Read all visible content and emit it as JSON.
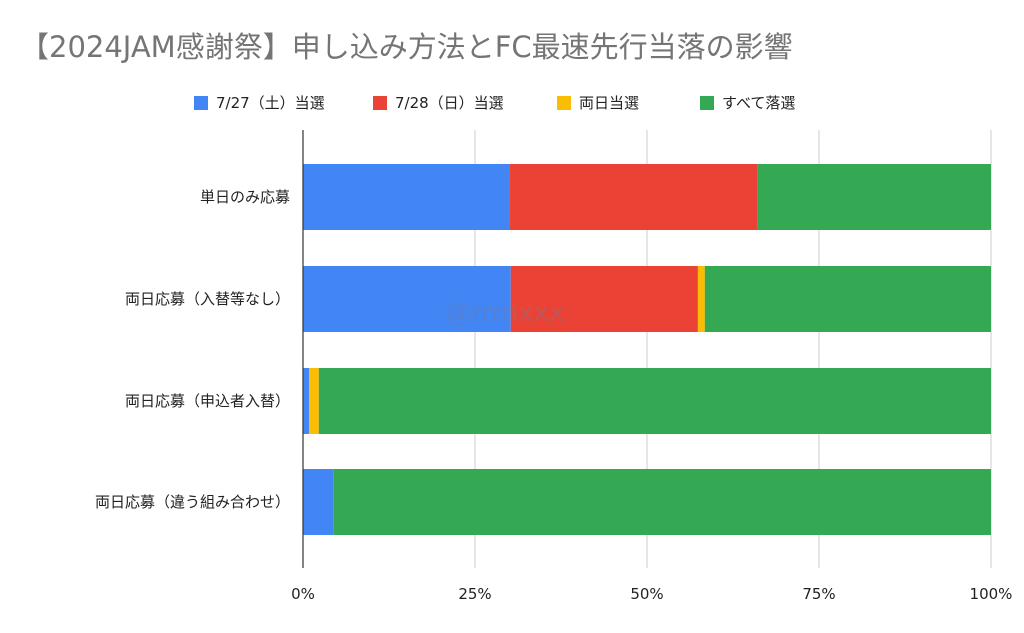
{
  "chart_data": {
    "type": "bar",
    "orientation": "horizontal",
    "stacked": "percent",
    "title": "【2024JAM感謝祭】申し込み方法とFC最速先行当落の影響",
    "categories": [
      "単日のみ応募",
      "両日応募（入替等なし）",
      "両日応募（申込者入替）",
      "両日応募（違う組み合わせ）"
    ],
    "series": [
      {
        "name": "7/27（土）当選",
        "color": "#4285F4",
        "values": [
          30,
          30.2,
          0.9,
          4.4
        ]
      },
      {
        "name": "7/28（日）当選",
        "color": "#EA4335",
        "values": [
          36,
          27.2,
          0,
          0
        ]
      },
      {
        "name": "両日当選",
        "color": "#FBBC04",
        "values": [
          0,
          1.0,
          1.4,
          0
        ]
      },
      {
        "name": "すべて落選",
        "color": "#34A853",
        "values": [
          34,
          41.6,
          97.7,
          95.6
        ]
      }
    ],
    "xticks": [
      "0%",
      "25%",
      "50%",
      "75%",
      "100%"
    ],
    "xlim": [
      0,
      100
    ],
    "grid": true,
    "legend_position": "top"
  },
  "watermark": "@rrrnxxx"
}
